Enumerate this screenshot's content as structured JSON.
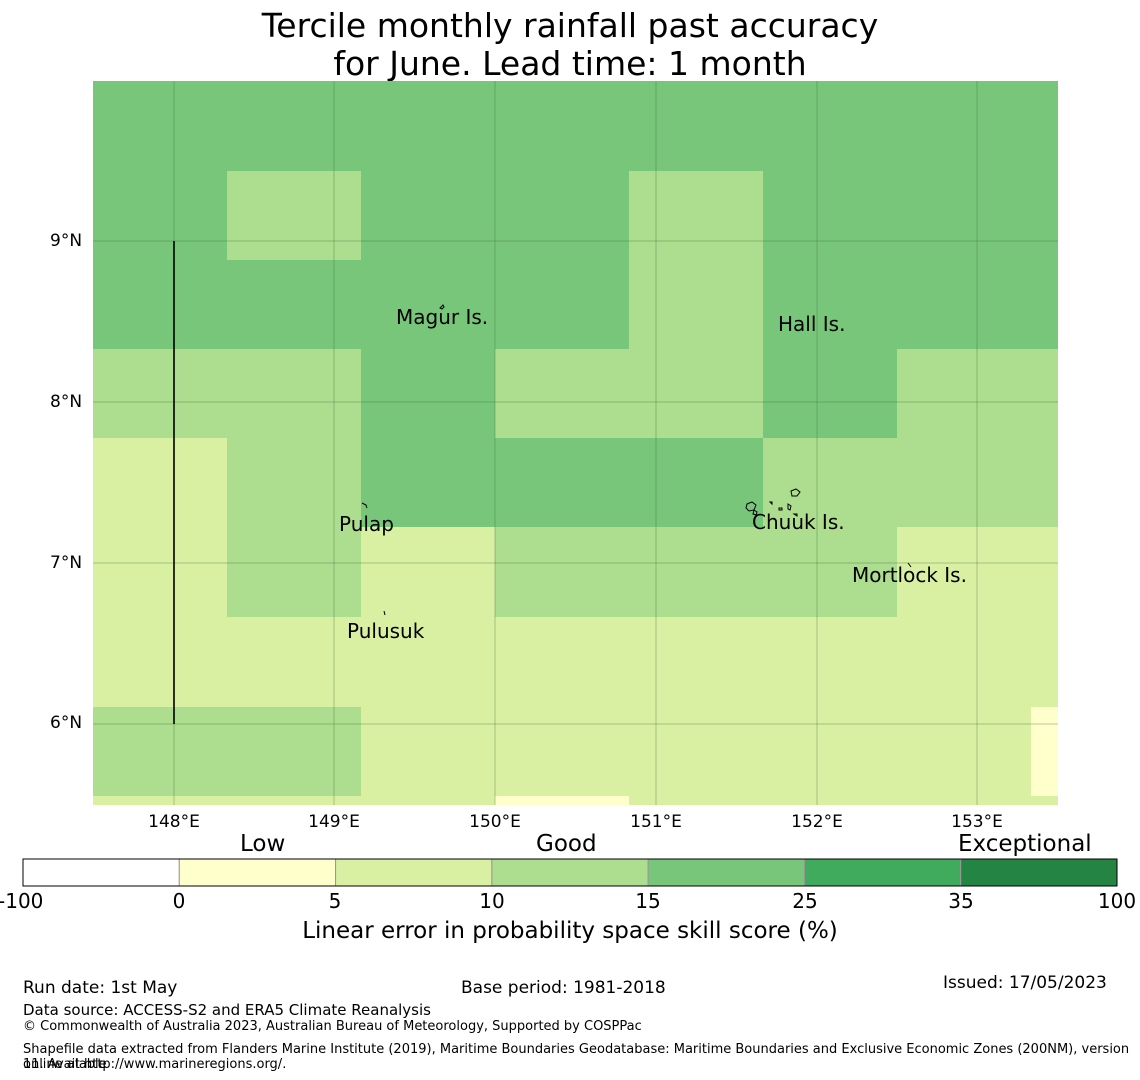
{
  "title": {
    "line1": "Tercile monthly rainfall past accuracy",
    "line2": "for June. Lead time: 1 month"
  },
  "map": {
    "lat_labels": [
      "9°N",
      "8°N",
      "7°N",
      "6°N"
    ],
    "lon_labels": [
      "148°E",
      "149°E",
      "150°E",
      "151°E",
      "152°E",
      "153°E"
    ],
    "places": [
      "Magur Is.",
      "Hall Is.",
      "Pulap",
      "Chuuk Is.",
      "Mortlock Is.",
      "Pulusuk"
    ]
  },
  "colorbar": {
    "categories": [
      "Low",
      "Good",
      "Exceptional"
    ],
    "ticks": [
      "-100",
      "0",
      "5",
      "10",
      "15",
      "25",
      "35",
      "100"
    ],
    "colors": [
      "#ffffff",
      "#ffffcc",
      "#d9f0a3",
      "#addd8e",
      "#78c679",
      "#41ab5d",
      "#238443"
    ],
    "title": "Linear error in probability space skill score (%)"
  },
  "footer": {
    "run_date": "Run date: 1st May",
    "base_period": "Base period: 1981-2018",
    "issued": "Issued: 17/05/2023",
    "data_source": "Data source: ACCESS-S2 and ERA5 Climate Reanalysis",
    "copyright": "© Commonwealth of Australia 2023, Australian Bureau of Meteorology, Supported by COSPPac",
    "shapefile_line1": "Shapefile data extracted from Flanders Marine Institute (2019), Maritime Boundaries Geodatabase: Maritime Boundaries and Exclusive Economic Zones (200NM), version 11. Available",
    "shapefile_line2": "online at http://www.marineregions.org/."
  }
}
